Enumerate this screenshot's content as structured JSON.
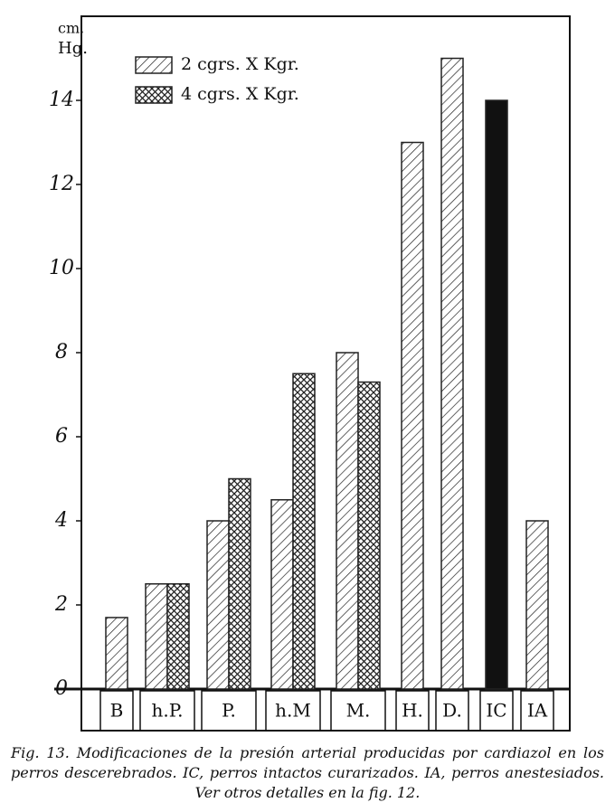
{
  "chart_data": {
    "type": "bar",
    "y_label_lines": [
      "cm.",
      "Hg."
    ],
    "categories": [
      "B",
      "h.P.",
      "P.",
      "h.M",
      "M.",
      "H.",
      "D.",
      "IC",
      "IA"
    ],
    "series": [
      {
        "name": "2 cgrs. X Kgr.",
        "color": "#222222",
        "fill": "hatch",
        "values": [
          1.7,
          2.5,
          4,
          4.5,
          8,
          13,
          15,
          14,
          4
        ],
        "bar_fills": [
          "hatch",
          "hatch",
          "hatch",
          "hatch",
          "hatch",
          "hatch",
          "hatch",
          "solid",
          "hatch"
        ]
      },
      {
        "name": "4 cgrs. X Kgr.",
        "color": "#222222",
        "fill": "crosshatch",
        "values": [
          null,
          2.5,
          5,
          7.5,
          7.3,
          null,
          null,
          null,
          null
        ]
      }
    ],
    "ylim": [
      0,
      16
    ],
    "yticks": [
      0,
      2,
      4,
      6,
      8,
      10,
      12,
      14
    ],
    "caption": "Fig. 13. Modificaciones de la presión arterial producidas por cardiazol en los perros descerebrados. IC, perros intactos curarizados. IA, perros anestesiados. Ver otros detalles en la fig. 12."
  }
}
